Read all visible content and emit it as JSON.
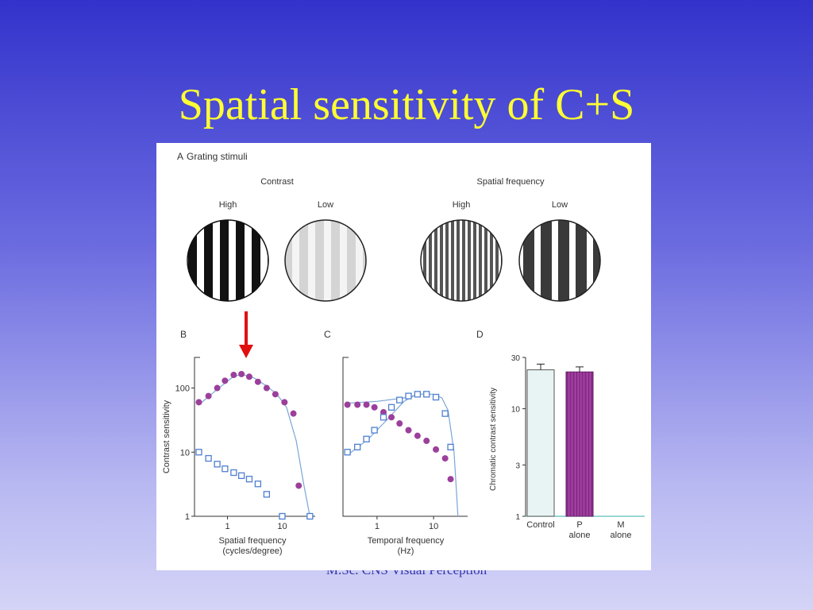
{
  "slide": {
    "title": "Spatial sensitivity of C+S",
    "footer": "M.Sc. CNS Visual Perception"
  },
  "figure": {
    "panel_a": {
      "letter": "A",
      "title": "Grating stimuli",
      "group_contrast": "Contrast",
      "group_spatial": "Spatial frequency",
      "labels": [
        "High",
        "Low",
        "High",
        "Low"
      ]
    },
    "arrow_color": "#e01010",
    "marker_purple": "#9b3f9b",
    "marker_blue": "#4f7fd0",
    "curve_color": "#7aa6d6"
  },
  "chart_data": [
    {
      "panel": "B",
      "type": "scatter",
      "xlabel": "Spatial frequency\n(cycles/degree)",
      "ylabel": "Contrast sensitivity",
      "x_scale": "log",
      "y_scale": "log",
      "xlim": [
        0.25,
        40
      ],
      "ylim": [
        1,
        300
      ],
      "x_ticks": [
        {
          "v": 1,
          "t": "1"
        },
        {
          "v": 10,
          "t": "10"
        }
      ],
      "y_ticks": [
        {
          "v": 1,
          "t": "1"
        },
        {
          "v": 10,
          "t": "10"
        },
        {
          "v": 100,
          "t": "100"
        }
      ],
      "series": [
        {
          "marker": "filled-circle",
          "color": "#9b3f9b",
          "x": [
            0.3,
            0.45,
            0.65,
            0.9,
            1.3,
            1.8,
            2.5,
            3.6,
            5.2,
            7.5,
            11,
            16,
            20
          ],
          "y": [
            60,
            75,
            100,
            130,
            160,
            165,
            150,
            125,
            100,
            80,
            60,
            40,
            3
          ]
        },
        {
          "marker": "open-square",
          "color": "#4f7fd0",
          "x": [
            0.3,
            0.45,
            0.65,
            0.9,
            1.3,
            1.8,
            2.5,
            3.6,
            5.2,
            10,
            32
          ],
          "y": [
            10,
            8,
            6.5,
            5.5,
            4.8,
            4.3,
            3.8,
            3.2,
            2.2,
            1.0,
            1.0
          ]
        }
      ],
      "curves": [
        {
          "color": "#7aa6d6",
          "x": [
            0.3,
            0.6,
            1.2,
            1.8,
            3,
            5,
            8,
            12,
            18,
            25,
            32
          ],
          "y": [
            55,
            90,
            145,
            165,
            145,
            110,
            80,
            50,
            15,
            3,
            1
          ]
        }
      ]
    },
    {
      "panel": "C",
      "type": "scatter",
      "xlabel": "Temporal frequency\n(Hz)",
      "ylabel": "",
      "x_scale": "log",
      "y_scale": "log",
      "xlim": [
        0.25,
        40
      ],
      "ylim": [
        1,
        300
      ],
      "x_ticks": [
        {
          "v": 1,
          "t": "1"
        },
        {
          "v": 10,
          "t": "10"
        }
      ],
      "y_ticks": [],
      "series": [
        {
          "marker": "filled-circle",
          "color": "#9b3f9b",
          "x": [
            0.3,
            0.45,
            0.65,
            0.9,
            1.3,
            1.8,
            2.5,
            3.6,
            5.2,
            7.5,
            11,
            16,
            20
          ],
          "y": [
            55,
            55,
            55,
            50,
            42,
            35,
            28,
            22,
            18,
            15,
            11,
            8,
            3.8
          ]
        },
        {
          "marker": "open-square",
          "color": "#4f7fd0",
          "x": [
            0.3,
            0.45,
            0.65,
            0.9,
            1.3,
            1.8,
            2.5,
            3.6,
            5.2,
            7.5,
            11,
            16,
            20
          ],
          "y": [
            10,
            12,
            16,
            22,
            35,
            50,
            65,
            75,
            80,
            80,
            72,
            40,
            12
          ]
        }
      ],
      "curves": [
        {
          "color": "#7aa6d6",
          "x": [
            0.3,
            1,
            3,
            6,
            10,
            14,
            18,
            23,
            27
          ],
          "y": [
            58,
            62,
            70,
            80,
            80,
            70,
            45,
            10,
            1
          ]
        },
        {
          "color": "#7aa6d6",
          "x": [
            0.3,
            0.7,
            1.5,
            3,
            5
          ],
          "y": [
            9,
            16,
            32,
            62,
            80
          ]
        }
      ]
    },
    {
      "panel": "D",
      "type": "bar",
      "ylabel": "Chromatic contrast sensitivity",
      "y_scale": "log",
      "ylim": [
        1,
        30
      ],
      "y_ticks": [
        {
          "v": 1,
          "t": "1"
        },
        {
          "v": 3,
          "t": "3"
        },
        {
          "v": 10,
          "t": "10"
        },
        {
          "v": 30,
          "t": "30"
        }
      ],
      "categories": [
        "Control",
        "P\nalone",
        "M\nalone"
      ],
      "values": [
        23,
        22,
        1
      ],
      "errors": [
        3,
        2.5,
        0
      ],
      "colors": [
        "#e8f4f4",
        "#8c2c8c",
        "#5bbdb6"
      ]
    }
  ]
}
